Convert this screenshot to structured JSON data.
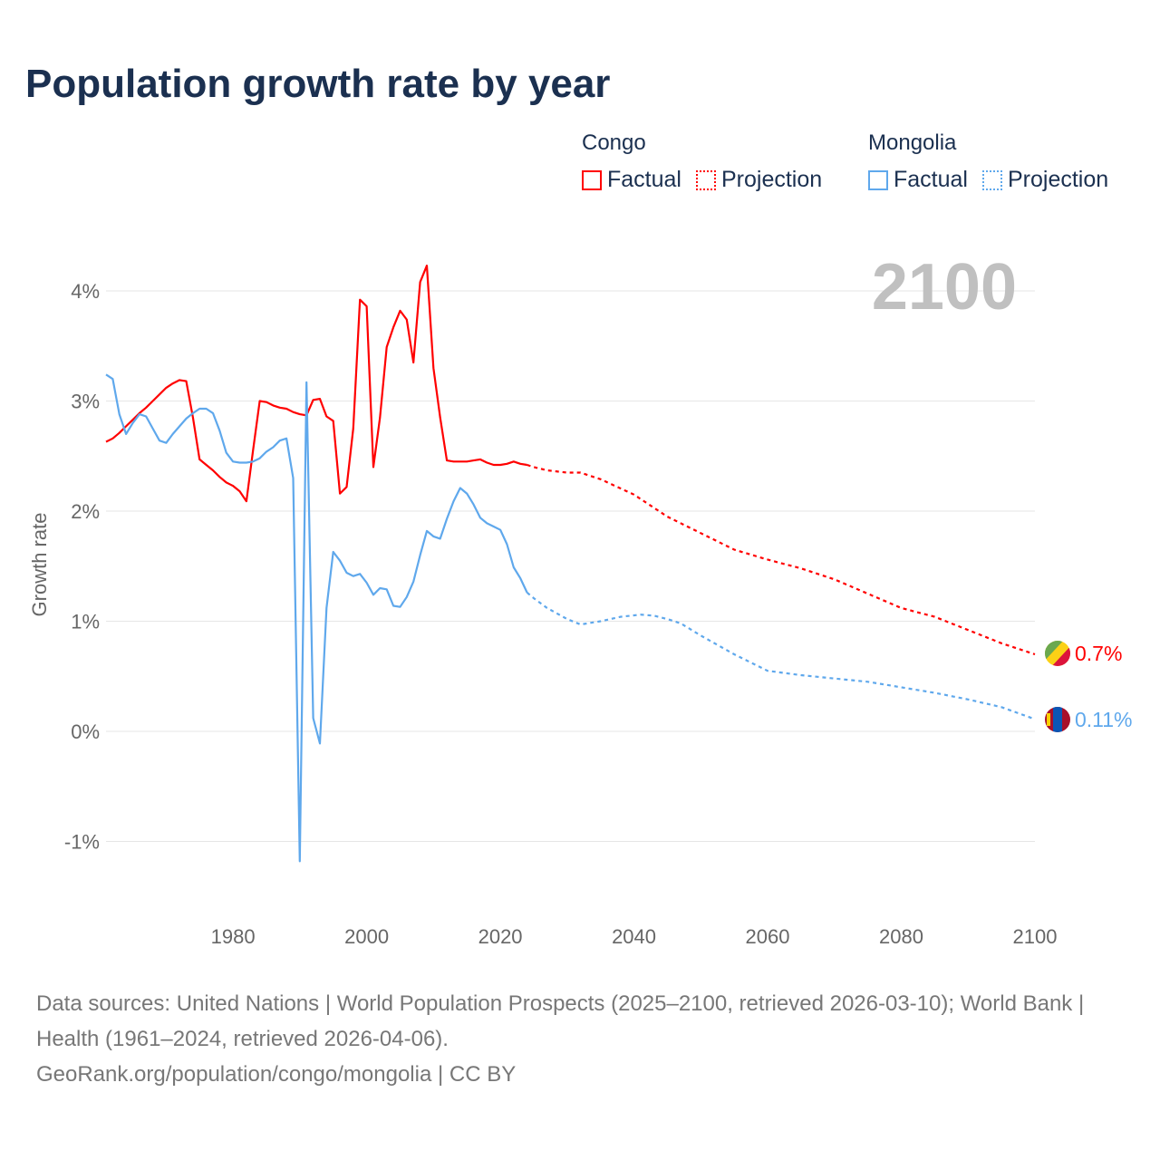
{
  "title": "Population growth rate by year",
  "year_watermark": "2100",
  "legend": [
    {
      "name": "Congo",
      "color": "#ff0000",
      "factual": "Factual",
      "projection": "Projection"
    },
    {
      "name": "Mongolia",
      "color": "#5fa8ec",
      "factual": "Factual",
      "projection": "Projection"
    }
  ],
  "chart_data": {
    "type": "line",
    "title": "Population growth rate by year",
    "xlabel": "",
    "ylabel": "Growth rate",
    "xlim": [
      1961,
      2100
    ],
    "ylim": [
      -1.5,
      4.5
    ],
    "x_ticks": [
      1980,
      2000,
      2020,
      2040,
      2060,
      2080,
      2100
    ],
    "x_tick_labels": [
      "1980",
      "2000",
      "2020",
      "2040",
      "2060",
      "2080",
      "2100"
    ],
    "y_ticks": [
      -1,
      0,
      1,
      2,
      3,
      4
    ],
    "y_tick_labels": [
      "-1%",
      "0%",
      "1%",
      "2%",
      "3%",
      "4%"
    ],
    "grid": true,
    "legend_position": "top-right",
    "series": [
      {
        "name": "Congo",
        "color": "#ff0000",
        "end_label": "0.7%",
        "factual": {
          "x": [
            1961,
            1962,
            1963,
            1964,
            1965,
            1966,
            1967,
            1968,
            1969,
            1970,
            1971,
            1972,
            1973,
            1974,
            1975,
            1976,
            1977,
            1978,
            1979,
            1980,
            1981,
            1982,
            1983,
            1984,
            1985,
            1986,
            1987,
            1988,
            1989,
            1990,
            1991,
            1992,
            1993,
            1994,
            1995,
            1996,
            1997,
            1998,
            1999,
            2000,
            2001,
            2002,
            2003,
            2004,
            2005,
            2006,
            2007,
            2008,
            2009,
            2010,
            2011,
            2012,
            2013,
            2014,
            2015,
            2016,
            2017,
            2018,
            2019,
            2020,
            2021,
            2022,
            2023,
            2024
          ],
          "y": [
            2.63,
            2.66,
            2.71,
            2.77,
            2.83,
            2.89,
            2.94,
            3.0,
            3.06,
            3.12,
            3.16,
            3.19,
            3.18,
            2.85,
            2.47,
            2.42,
            2.37,
            2.31,
            2.26,
            2.23,
            2.18,
            2.09,
            2.55,
            3.0,
            2.99,
            2.96,
            2.94,
            2.93,
            2.9,
            2.88,
            2.87,
            3.01,
            3.02,
            2.86,
            2.82,
            2.16,
            2.22,
            2.75,
            3.92,
            3.86,
            2.4,
            2.85,
            3.49,
            3.67,
            3.82,
            3.74,
            3.35,
            4.08,
            4.23,
            3.3,
            2.85,
            2.46,
            2.45,
            2.45,
            2.45,
            2.46,
            2.47,
            2.44,
            2.42,
            2.42,
            2.43,
            2.45,
            2.43,
            2.42
          ]
        },
        "projection": {
          "x": [
            2024,
            2025,
            2027,
            2030,
            2032,
            2035,
            2040,
            2045,
            2050,
            2055,
            2060,
            2065,
            2070,
            2075,
            2080,
            2085,
            2090,
            2095,
            2100
          ],
          "y": [
            2.42,
            2.4,
            2.37,
            2.35,
            2.35,
            2.29,
            2.15,
            1.95,
            1.8,
            1.65,
            1.56,
            1.48,
            1.38,
            1.25,
            1.12,
            1.04,
            0.92,
            0.8,
            0.7
          ]
        }
      },
      {
        "name": "Mongolia",
        "color": "#5fa8ec",
        "end_label": "0.11%",
        "factual": {
          "x": [
            1961,
            1962,
            1963,
            1964,
            1965,
            1966,
            1967,
            1968,
            1969,
            1970,
            1971,
            1972,
            1973,
            1974,
            1975,
            1976,
            1977,
            1978,
            1979,
            1980,
            1981,
            1982,
            1983,
            1984,
            1985,
            1986,
            1987,
            1988,
            1989,
            1990,
            1991,
            1992,
            1993,
            1994,
            1995,
            1996,
            1997,
            1998,
            1999,
            2000,
            2001,
            2002,
            2003,
            2004,
            2005,
            2006,
            2007,
            2008,
            2009,
            2010,
            2011,
            2012,
            2013,
            2014,
            2015,
            2016,
            2017,
            2018,
            2019,
            2020,
            2021,
            2022,
            2023,
            2024
          ],
          "y": [
            3.24,
            3.2,
            2.88,
            2.7,
            2.8,
            2.88,
            2.86,
            2.75,
            2.64,
            2.62,
            2.7,
            2.77,
            2.84,
            2.89,
            2.93,
            2.93,
            2.89,
            2.73,
            2.53,
            2.45,
            2.44,
            2.44,
            2.45,
            2.48,
            2.54,
            2.58,
            2.64,
            2.66,
            2.3,
            -1.18,
            3.17,
            0.12,
            -0.11,
            1.12,
            1.63,
            1.55,
            1.44,
            1.41,
            1.43,
            1.35,
            1.24,
            1.3,
            1.29,
            1.14,
            1.13,
            1.22,
            1.36,
            1.6,
            1.82,
            1.77,
            1.75,
            1.93,
            2.09,
            2.21,
            2.16,
            2.06,
            1.94,
            1.89,
            1.86,
            1.83,
            1.7,
            1.49,
            1.39,
            1.26
          ]
        },
        "projection": {
          "x": [
            2024,
            2025,
            2027,
            2030,
            2032,
            2035,
            2038,
            2041,
            2043,
            2045,
            2047,
            2050,
            2055,
            2060,
            2065,
            2070,
            2075,
            2080,
            2085,
            2090,
            2095,
            2100
          ],
          "y": [
            1.26,
            1.21,
            1.12,
            1.02,
            0.97,
            1.0,
            1.04,
            1.06,
            1.05,
            1.02,
            0.98,
            0.87,
            0.7,
            0.55,
            0.51,
            0.48,
            0.45,
            0.4,
            0.35,
            0.29,
            0.22,
            0.11
          ]
        }
      }
    ]
  },
  "footer": {
    "sources": "Data sources: United Nations | World Population Prospects (2025–2100, retrieved 2026-03-10); World Bank | Health (1961–2024, retrieved 2026-04-06).",
    "credit": "GeoRank.org/population/congo/mongolia | CC BY"
  }
}
